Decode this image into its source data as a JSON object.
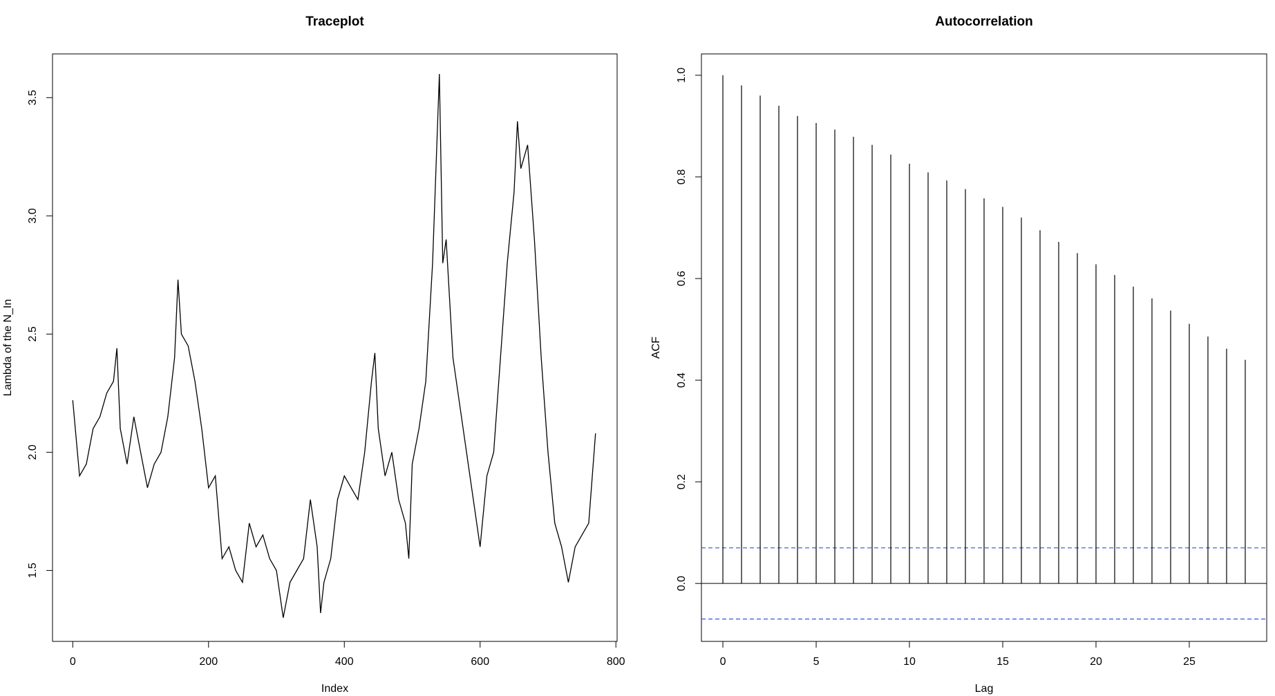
{
  "chart_data": [
    {
      "type": "line",
      "title": "Traceplot",
      "x_label": "Index",
      "y_label": "Lambda of the N_In",
      "color": "#000000",
      "x": [
        0,
        10,
        20,
        30,
        40,
        50,
        60,
        65,
        70,
        80,
        90,
        100,
        110,
        120,
        130,
        140,
        150,
        155,
        160,
        170,
        180,
        190,
        200,
        210,
        220,
        230,
        240,
        250,
        260,
        270,
        280,
        290,
        300,
        310,
        320,
        330,
        340,
        350,
        360,
        365,
        370,
        380,
        390,
        400,
        410,
        420,
        430,
        440,
        445,
        450,
        460,
        470,
        480,
        490,
        495,
        500,
        510,
        520,
        530,
        540,
        545,
        550,
        560,
        570,
        580,
        590,
        600,
        610,
        620,
        630,
        640,
        650,
        655,
        660,
        670,
        680,
        690,
        700,
        710,
        720,
        730,
        740,
        750,
        760,
        770
      ],
      "values": [
        2.22,
        1.9,
        1.95,
        2.1,
        2.15,
        2.25,
        2.3,
        2.44,
        2.1,
        1.95,
        2.15,
        2.0,
        1.85,
        1.95,
        2.0,
        2.15,
        2.4,
        2.73,
        2.5,
        2.45,
        2.3,
        2.1,
        1.85,
        1.9,
        1.55,
        1.6,
        1.5,
        1.45,
        1.7,
        1.6,
        1.65,
        1.55,
        1.5,
        1.3,
        1.45,
        1.5,
        1.55,
        1.8,
        1.6,
        1.32,
        1.45,
        1.55,
        1.8,
        1.9,
        1.85,
        1.8,
        2.0,
        2.3,
        2.42,
        2.1,
        1.9,
        2.0,
        1.8,
        1.7,
        1.55,
        1.95,
        2.1,
        2.3,
        2.8,
        3.6,
        2.8,
        2.9,
        2.4,
        2.2,
        2.0,
        1.8,
        1.6,
        1.9,
        2.0,
        2.4,
        2.8,
        3.1,
        3.4,
        3.2,
        3.3,
        2.9,
        2.4,
        2.0,
        1.7,
        1.6,
        1.45,
        1.6,
        1.65,
        1.7,
        2.08
      ],
      "xlim": [
        -29.8,
        801.8
      ],
      "xticks": [
        0,
        200,
        400,
        600,
        800
      ],
      "ylim": [
        1.2,
        3.685
      ],
      "yticks": [
        1.5,
        {
          "value": 2,
          "label": "2.0"
        },
        2.5,
        {
          "value": 3,
          "label": "3.0"
        },
        3.5
      ]
    },
    {
      "type": "stem",
      "title": "Autocorrelation",
      "x_label": "Lag",
      "y_label": "ACF",
      "color": "#000000",
      "x": [
        0,
        1,
        2,
        3,
        4,
        5,
        6,
        7,
        8,
        9,
        10,
        11,
        12,
        13,
        14,
        15,
        16,
        17,
        18,
        19,
        20,
        21,
        22,
        23,
        24,
        25,
        26,
        27,
        28
      ],
      "values": [
        1.0,
        0.98,
        0.96,
        0.94,
        0.92,
        0.906,
        0.893,
        0.879,
        0.863,
        0.844,
        0.826,
        0.809,
        0.793,
        0.776,
        0.758,
        0.741,
        0.72,
        0.695,
        0.672,
        0.65,
        0.628,
        0.607,
        0.584,
        0.561,
        0.537,
        0.511,
        0.486,
        0.462,
        0.44
      ],
      "conf_limits": [
        0.07,
        -0.07
      ],
      "conf_color": "#3355dd",
      "xlim": [
        -1.15,
        29.15
      ],
      "xticks": [
        0,
        5,
        10,
        15,
        20,
        25
      ],
      "ylim": [
        -0.114,
        1.042
      ],
      "yticks": [
        {
          "value": 0,
          "label": "0.0"
        },
        0.2,
        0.4,
        0.6,
        0.8,
        {
          "value": 1,
          "label": "1.0"
        }
      ]
    }
  ]
}
